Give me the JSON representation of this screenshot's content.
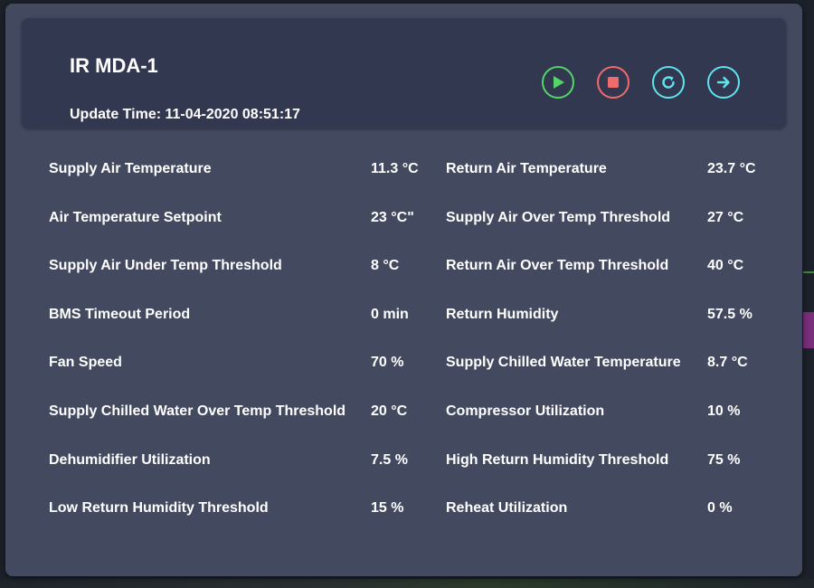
{
  "header": {
    "title": "IR MDA-1",
    "update_time": "Update Time: 11-04-2020 08:51:17"
  },
  "controls": {
    "play": {
      "icon": "play-icon",
      "color": "#54d46a"
    },
    "stop": {
      "icon": "stop-icon",
      "color": "#f06b6b"
    },
    "refresh": {
      "icon": "refresh-icon",
      "color": "#5fe3ef"
    },
    "forward": {
      "icon": "arrow-right-icon",
      "color": "#5fe3ef"
    }
  },
  "metrics": {
    "left": [
      {
        "label": "Supply Air Temperature",
        "value": "11.3 °C"
      },
      {
        "label": "Air Temperature Setpoint",
        "value": "23 °C\""
      },
      {
        "label": "Supply Air Under Temp Threshold",
        "value": "8 °C"
      },
      {
        "label": "BMS Timeout Period",
        "value": "0 min"
      },
      {
        "label": "Fan Speed",
        "value": "70 %"
      },
      {
        "label": "Supply Chilled Water Over Temp Threshold",
        "value": "20 °C"
      },
      {
        "label": "Dehumidifier Utilization",
        "value": "7.5 %"
      },
      {
        "label": "Low Return Humidity Threshold",
        "value": "15 %"
      }
    ],
    "right": [
      {
        "label": "Return Air Temperature",
        "value": "23.7 °C"
      },
      {
        "label": "Supply Air Over Temp Threshold",
        "value": "27 °C"
      },
      {
        "label": "Return Air Over Temp Threshold",
        "value": "40 °C"
      },
      {
        "label": "Return Humidity",
        "value": "57.5 %"
      },
      {
        "label": "Supply Chilled Water Temperature",
        "value": "8.7 °C"
      },
      {
        "label": "Compressor Utilization",
        "value": "10 %"
      },
      {
        "label": "High Return Humidity Threshold",
        "value": "75 %"
      },
      {
        "label": "Reheat Utilization",
        "value": "0 %"
      }
    ]
  },
  "colors": {
    "panel_bg": "#434a60",
    "header_bg": "#333851",
    "text": "#ffffff"
  }
}
